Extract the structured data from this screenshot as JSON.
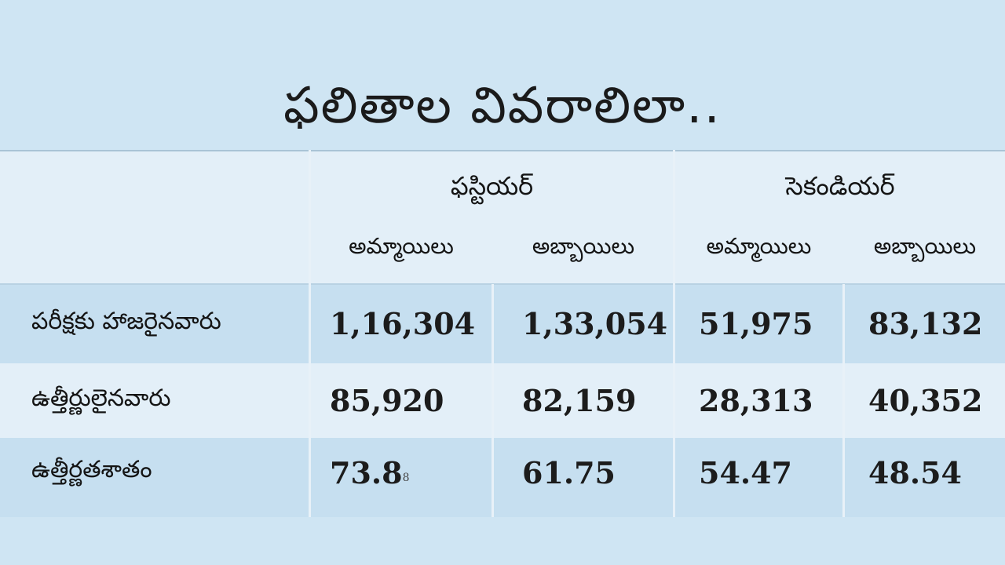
{
  "title": "ఫలితాల వివరాలిలా..",
  "table": {
    "groups": [
      {
        "label": "ఫస్టియర్",
        "sub": [
          "అమ్మాయిలు",
          "అబ్బాయిలు"
        ]
      },
      {
        "label": "సెకండియర్",
        "sub": [
          "అమ్మాయిలు",
          "అబ్బాయిలు"
        ]
      }
    ],
    "rows": [
      {
        "label": "పరీక్షకు హాజరైనవారు",
        "values": [
          "1,16,304",
          "1,33,054",
          "51,975",
          "83,132"
        ]
      },
      {
        "label": "ఉత్తీర్ణులైనవారు",
        "values": [
          "85,920",
          "82,159",
          "28,313",
          "40,352"
        ]
      },
      {
        "label": "ఉత్తీర్ణతశాతం",
        "values": [
          "73.8",
          "61.75",
          "54.47",
          "48.54"
        ],
        "first_value_tail": "8"
      }
    ]
  },
  "colors": {
    "background": "#cfe5f3",
    "header_band": "#e3eff8",
    "row_light": "#e3eff8",
    "row_blue": "#c6dff0",
    "grid_line": "#e8f1f8"
  }
}
